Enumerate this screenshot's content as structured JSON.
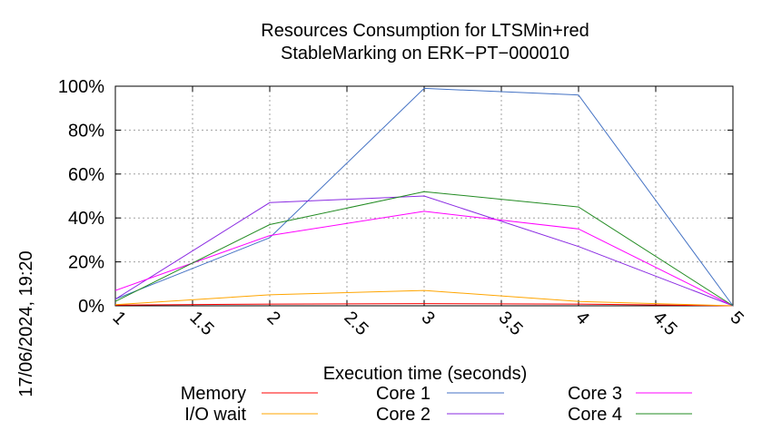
{
  "chart_data": {
    "type": "line",
    "title_line1": "Resources Consumption for LTSMin+red",
    "title_line2": "StableMarking on ERK−PT−000010",
    "xlabel": "Execution time (seconds)",
    "ylabel": "",
    "timestamp": "17/06/2024, 19:20",
    "xlim": [
      1,
      5
    ],
    "ylim": [
      0,
      100
    ],
    "x_ticks": [
      "1",
      "1.5",
      "2",
      "2.5",
      "3",
      "3.5",
      "4",
      "4.5",
      "5"
    ],
    "x_tick_values": [
      1,
      1.5,
      2,
      2.5,
      3,
      3.5,
      4,
      4.5,
      5
    ],
    "y_ticks": [
      "0%",
      "20%",
      "40%",
      "60%",
      "80%",
      "100%"
    ],
    "y_tick_values": [
      0,
      20,
      40,
      60,
      80,
      100
    ],
    "grid": true,
    "legend_position": "bottom",
    "x": [
      1,
      2,
      3,
      4,
      5
    ],
    "series": [
      {
        "name": "Memory",
        "color": "#ff0000",
        "values": [
          0.3,
          0.8,
          1.0,
          0.8,
          0
        ]
      },
      {
        "name": "I/O wait",
        "color": "#ffa500",
        "values": [
          0.5,
          5,
          7,
          2,
          0
        ]
      },
      {
        "name": "Core 1",
        "color": "#4472c4",
        "values": [
          3,
          31,
          99,
          96,
          0
        ]
      },
      {
        "name": "Core 2",
        "color": "#8a2be2",
        "values": [
          3,
          47,
          50,
          27,
          0
        ]
      },
      {
        "name": "Core 3",
        "color": "#ff00ff",
        "values": [
          7,
          32,
          43,
          35,
          0
        ]
      },
      {
        "name": "Core 4",
        "color": "#228b22",
        "values": [
          2,
          37,
          52,
          45,
          0
        ]
      }
    ]
  }
}
